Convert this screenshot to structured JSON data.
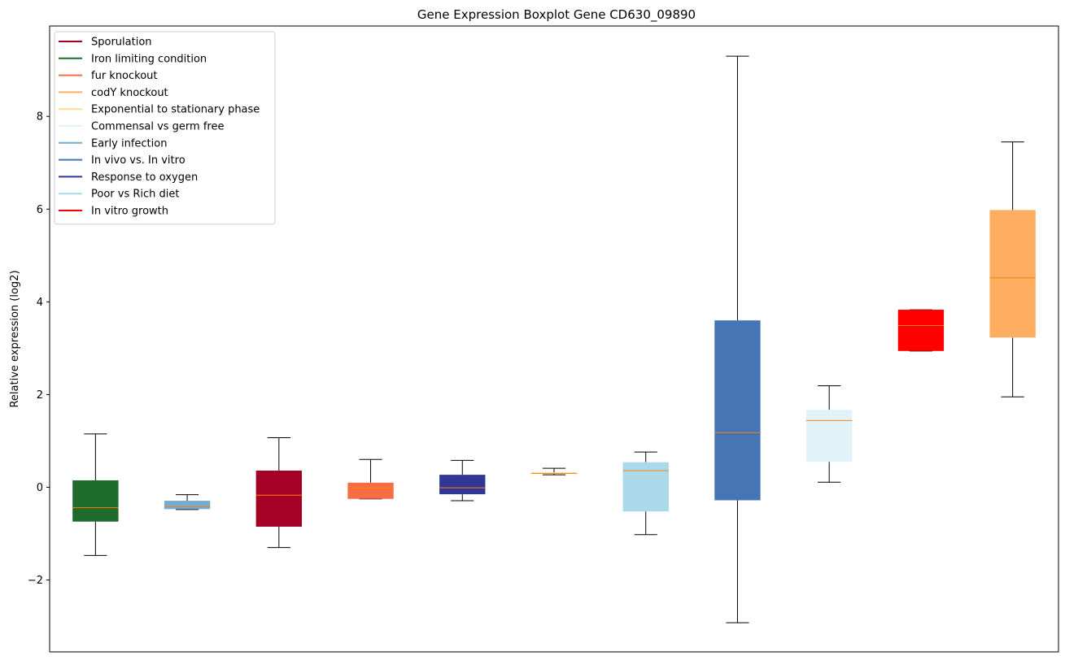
{
  "chart_data": {
    "type": "boxplot",
    "title": "Gene Expression Boxplot Gene CD630_09890",
    "xlabel": "",
    "ylabel": "Relative expression (log2)",
    "ylim": [
      -3.55,
      9.95
    ],
    "yticks": [
      -2,
      0,
      2,
      4,
      6,
      8
    ],
    "ytick_labels": [
      "−2",
      "0",
      "2",
      "4",
      "6",
      "8"
    ],
    "legend_position": "upper-left",
    "legend": [
      {
        "label": "Sporulation",
        "color": "#a50026"
      },
      {
        "label": "Iron limiting condition",
        "color": "#1f6b2e"
      },
      {
        "label": "fur knockout",
        "color": "#f46d43"
      },
      {
        "label": "codY knockout",
        "color": "#fdae61"
      },
      {
        "label": "Exponential to stationary phase",
        "color": "#fee090"
      },
      {
        "label": "Commensal vs germ free",
        "color": "#e0f3f8"
      },
      {
        "label": "Early infection",
        "color": "#74add1"
      },
      {
        "label": "In vivo vs. In vitro",
        "color": "#4575b4"
      },
      {
        "label": "Response to oxygen",
        "color": "#313695"
      },
      {
        "label": "Poor vs Rich diet",
        "color": "#abd9e9"
      },
      {
        "label": "In vitro growth",
        "color": "#ff0000"
      }
    ],
    "boxes": [
      {
        "color": "#1f6b2e",
        "whisker_low": -1.47,
        "q1": -0.74,
        "median": -0.44,
        "q3": 0.15,
        "whisker_high": 1.15
      },
      {
        "color": "#74add1",
        "whisker_low": -0.48,
        "q1": -0.47,
        "median": -0.42,
        "q3": -0.29,
        "whisker_high": -0.16
      },
      {
        "color": "#a50026",
        "whisker_low": -1.3,
        "q1": -0.85,
        "median": -0.17,
        "q3": 0.36,
        "whisker_high": 1.07
      },
      {
        "color": "#f46d43",
        "whisker_low": -0.25,
        "q1": -0.25,
        "median": -0.02,
        "q3": 0.1,
        "whisker_high": 0.6
      },
      {
        "color": "#313695",
        "whisker_low": -0.29,
        "q1": -0.15,
        "median": -0.01,
        "q3": 0.27,
        "whisker_high": 0.58
      },
      {
        "color": "#fee090",
        "whisker_low": 0.27,
        "q1": 0.29,
        "median": 0.3,
        "q3": 0.32,
        "whisker_high": 0.41
      },
      {
        "color": "#abd9e9",
        "whisker_low": -1.02,
        "q1": -0.52,
        "median": 0.36,
        "q3": 0.54,
        "whisker_high": 0.76
      },
      {
        "color": "#4575b4",
        "whisker_low": -2.92,
        "q1": -0.28,
        "median": 1.18,
        "q3": 3.6,
        "whisker_high": 9.3
      },
      {
        "color": "#e0f3f8",
        "whisker_low": 0.11,
        "q1": 0.55,
        "median": 1.44,
        "q3": 1.67,
        "whisker_high": 2.19
      },
      {
        "color": "#ff0000",
        "whisker_low": 2.94,
        "q1": 2.94,
        "median": 3.49,
        "q3": 3.83,
        "whisker_high": 3.83
      },
      {
        "color": "#fdae61",
        "whisker_low": 1.95,
        "q1": 3.23,
        "median": 4.52,
        "q3": 5.98,
        "whisker_high": 7.45
      }
    ],
    "median_color": "#ff7f0e"
  }
}
